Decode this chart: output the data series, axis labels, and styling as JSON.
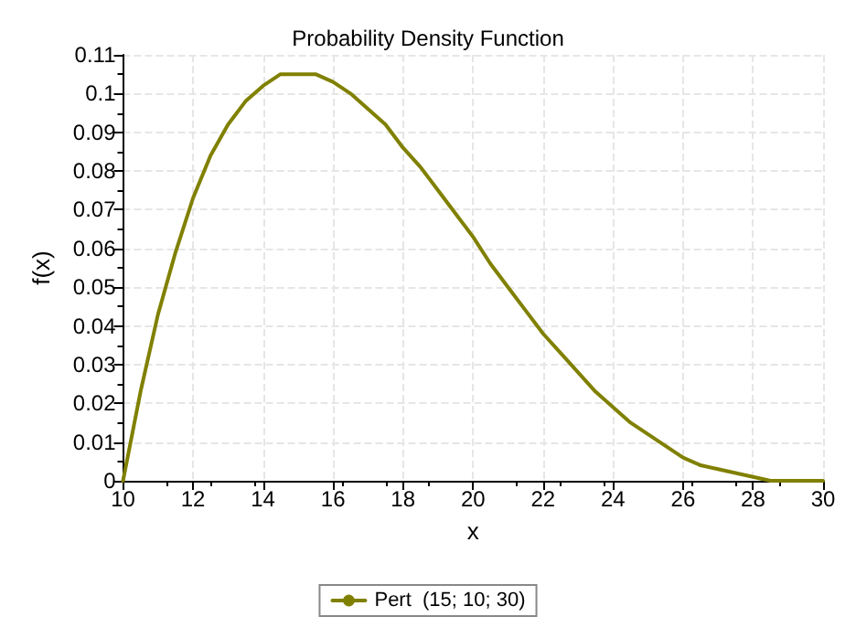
{
  "chart_data": {
    "type": "line",
    "title": "Probability Density Function",
    "xlabel": "x",
    "ylabel": "f(x)",
    "x": [
      10,
      10.5,
      11,
      11.5,
      12,
      12.5,
      13,
      13.5,
      14,
      14.5,
      15,
      15.5,
      16,
      16.5,
      17,
      17.5,
      18,
      18.5,
      19,
      19.5,
      20,
      20.5,
      21,
      21.5,
      22,
      22.5,
      23,
      23.5,
      24,
      24.5,
      25,
      25.5,
      26,
      26.5,
      27,
      27.5,
      28,
      28.5,
      29,
      29.5,
      30
    ],
    "series": [
      {
        "name": "Pert  (15; 10; 30)",
        "color": "#808000",
        "values": [
          0,
          0.023,
          0.043,
          0.059,
          0.073,
          0.084,
          0.092,
          0.098,
          0.102,
          0.105,
          0.105,
          0.105,
          0.103,
          0.1,
          0.096,
          0.092,
          0.086,
          0.081,
          0.075,
          0.069,
          0.063,
          0.056,
          0.05,
          0.044,
          0.038,
          0.033,
          0.028,
          0.023,
          0.019,
          0.015,
          0.012,
          0.009,
          0.006,
          0.004,
          0.003,
          0.002,
          0.001,
          0.0,
          0.0,
          0.0,
          0
        ]
      }
    ],
    "xlim": [
      10,
      30
    ],
    "xticks": [
      10,
      12,
      14,
      16,
      18,
      20,
      22,
      24,
      26,
      28,
      30
    ],
    "ylim": [
      0,
      0.11
    ],
    "yticks": [
      0,
      0.01,
      0.02,
      0.03,
      0.04,
      0.05,
      0.06,
      0.07,
      0.08,
      0.09,
      0.1,
      0.11
    ],
    "grid": true,
    "legend": "bottom",
    "marker": "none",
    "line_style": "solid"
  }
}
